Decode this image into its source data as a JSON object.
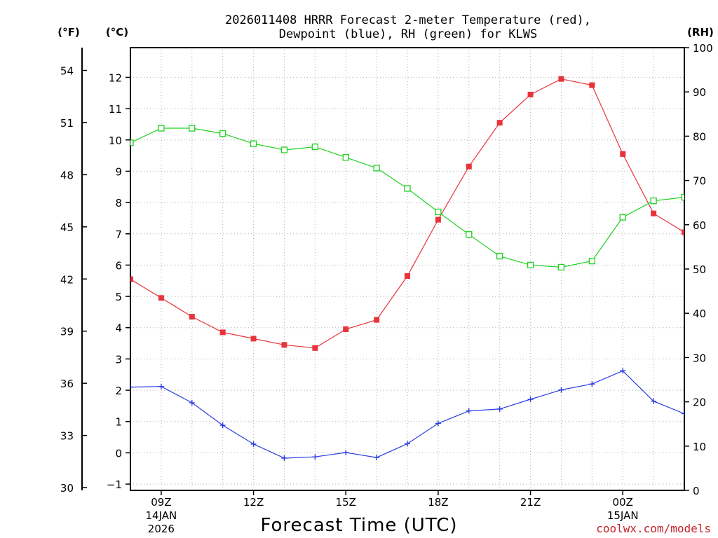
{
  "chart_data": {
    "type": "line",
    "title_line1": "2026011408 HRRR Forecast 2-meter Temperature (red),",
    "title_line2": "Dewpoint (blue), RH (green) for KLWS",
    "xlabel": "Forecast Time (UTC)",
    "credit": "coolwx.com/models",
    "units": {
      "fahrenheit": "(°F)",
      "celsius": "(°C)",
      "rh": "(RH)"
    },
    "ylim_c": [
      -1.2,
      12.95
    ],
    "ylim_f": [
      29.84,
      55.31
    ],
    "ylim_rh": [
      0,
      100
    ],
    "xlim_hours": [
      8,
      26
    ],
    "celsius_ticks": [
      -1,
      0,
      1,
      2,
      3,
      4,
      5,
      6,
      7,
      8,
      9,
      10,
      11,
      12
    ],
    "fahrenheit_ticks": [
      30,
      33,
      36,
      39,
      42,
      45,
      48,
      51,
      54
    ],
    "rh_ticks": [
      0,
      10,
      20,
      30,
      40,
      50,
      60,
      70,
      80,
      90,
      100
    ],
    "x_ticks": [
      {
        "hour": 9,
        "line1": "09Z",
        "line2": "14JAN",
        "line3": "2026"
      },
      {
        "hour": 12,
        "line1": "12Z",
        "line2": "",
        "line3": ""
      },
      {
        "hour": 15,
        "line1": "15Z",
        "line2": "",
        "line3": ""
      },
      {
        "hour": 18,
        "line1": "18Z",
        "line2": "",
        "line3": ""
      },
      {
        "hour": 21,
        "line1": "21Z",
        "line2": "",
        "line3": ""
      },
      {
        "hour": 24,
        "line1": "00Z",
        "line2": "15JAN",
        "line3": ""
      }
    ],
    "x_hours": [
      8,
      9,
      10,
      11,
      12,
      13,
      14,
      15,
      16,
      17,
      18,
      19,
      20,
      21,
      22,
      23,
      24,
      25,
      26
    ],
    "series": [
      {
        "name": "Temperature",
        "color": "#e8333a",
        "axis": "celsius",
        "marker": "filled-square",
        "values": [
          5.55,
          4.95,
          4.35,
          3.85,
          3.65,
          3.45,
          3.35,
          3.95,
          4.25,
          5.65,
          7.45,
          9.15,
          10.55,
          11.45,
          11.95,
          11.75,
          9.55,
          7.65,
          7.05
        ]
      },
      {
        "name": "Dewpoint",
        "color": "#2a3de0",
        "axis": "celsius",
        "marker": "plus",
        "values": [
          2.1,
          2.12,
          1.6,
          0.88,
          0.28,
          -0.17,
          -0.13,
          0.01,
          -0.15,
          0.29,
          0.94,
          1.34,
          1.4,
          1.71,
          2.01,
          2.2,
          2.62,
          1.65,
          1.25
        ]
      },
      {
        "name": "RH",
        "color": "#1fd11f",
        "axis": "rh",
        "marker": "open-square",
        "values": [
          78.5,
          81.8,
          81.8,
          80.6,
          78.3,
          76.9,
          77.6,
          75.2,
          72.8,
          68.2,
          62.9,
          57.8,
          52.9,
          50.9,
          50.4,
          51.8,
          61.7,
          65.4,
          66.2
        ]
      }
    ]
  }
}
